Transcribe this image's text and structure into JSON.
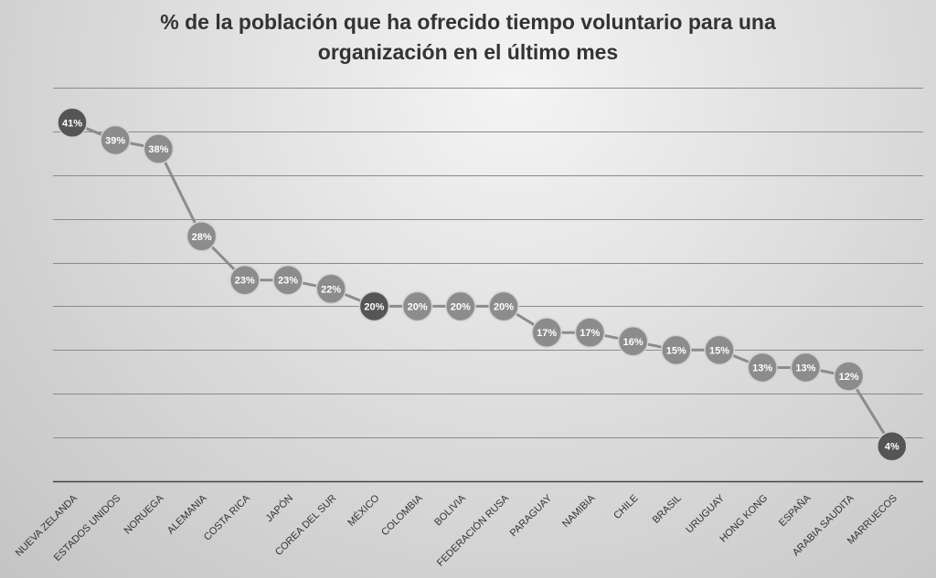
{
  "chart_data": {
    "type": "line",
    "title_lines": [
      "% de la población que ha ofrecido tiempo voluntario para una",
      "organización en el último mes"
    ],
    "categories": [
      "NUEVA ZELANDA",
      "ESTADOS UNIDOS",
      "NORUEGA",
      "ALEMANIA",
      "COSTA RICA",
      "JAPÓN",
      "COREA DEL SUR",
      "MÉXICO",
      "COLOMBIA",
      "BOLIVIA",
      "FEDERACIÓN RUSA",
      "PARAGUAY",
      "NAMIBIA",
      "CHILE",
      "BRASIL",
      "URUGUAY",
      "HONG KONG",
      "ESPAÑA",
      "ARABIA SAUDITA",
      "MARRUECOS"
    ],
    "values": [
      41,
      39,
      38,
      28,
      23,
      23,
      22,
      20,
      20,
      20,
      20,
      17,
      17,
      16,
      15,
      15,
      13,
      13,
      12,
      4
    ],
    "data_labels": [
      "41%",
      "39%",
      "38%",
      "28%",
      "23%",
      "23%",
      "22%",
      "20%",
      "20%",
      "20%",
      "20%",
      "17%",
      "17%",
      "16%",
      "15%",
      "15%",
      "13%",
      "13%",
      "12%",
      "4%"
    ],
    "highlighted": [
      "NUEVA ZELANDA",
      "MÉXICO",
      "MARRUECOS"
    ],
    "ylim": [
      0,
      45
    ],
    "grid": true,
    "colors": {
      "line": "#8c8c8c",
      "marker": "#8c8c8c",
      "marker_highlight": "#555555",
      "marker_border": "#d0d0d0",
      "label": "#ffffff",
      "grid": "#8a8a8a",
      "axis": "#444444",
      "tick_label": "#333333"
    }
  }
}
